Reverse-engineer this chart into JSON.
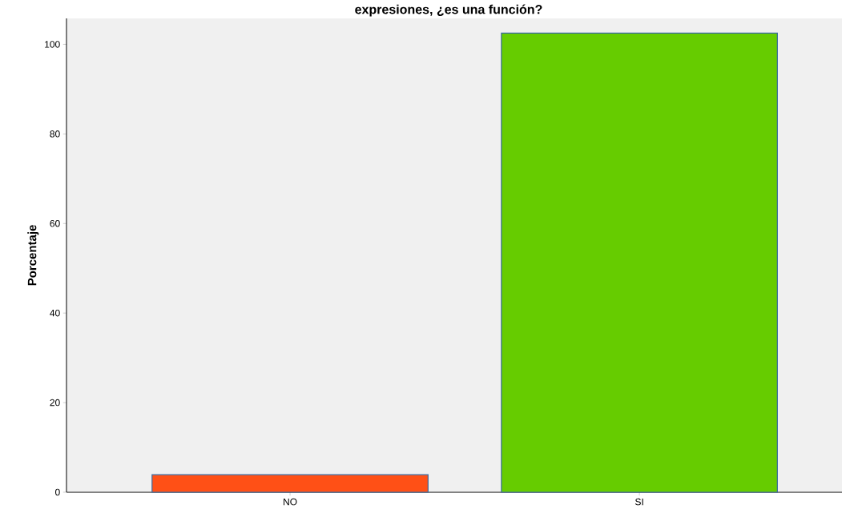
{
  "chart_data": {
    "type": "bar",
    "title": "expresiones, ¿es una función?",
    "ylabel": "Porcentaje",
    "categories": [
      "NO",
      "SI"
    ],
    "values": [
      3.9,
      102.5
    ],
    "colors": [
      "#ff5016",
      "#66cc00"
    ],
    "ylim": [
      0,
      105.8
    ],
    "yticks": [
      0,
      20,
      40,
      60,
      80,
      100
    ]
  }
}
